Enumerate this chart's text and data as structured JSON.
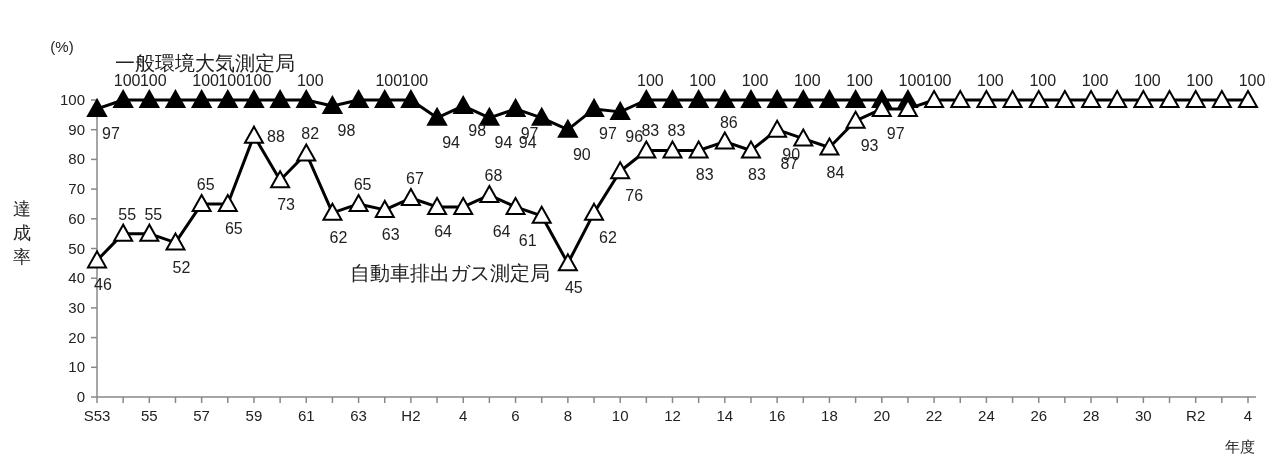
{
  "chart_data": {
    "type": "line",
    "categories": [
      "S53",
      null,
      "55",
      null,
      "57",
      null,
      "59",
      null,
      "61",
      null,
      "63",
      null,
      "H2",
      null,
      "4",
      null,
      "6",
      null,
      "8",
      null,
      "10",
      null,
      "12",
      null,
      "14",
      null,
      "16",
      null,
      "18",
      null,
      "20",
      null,
      "22",
      null,
      "24",
      null,
      "26",
      null,
      "28",
      null,
      "30",
      null,
      "R2",
      null,
      "4"
    ],
    "xlabel": "年度",
    "ylabel": "達成率",
    "annotations": [
      "(%)"
    ],
    "ylim": [
      0,
      100
    ],
    "yticks": [
      0,
      10,
      20,
      30,
      40,
      50,
      60,
      70,
      80,
      90,
      100
    ],
    "grid": false,
    "legend": false,
    "marker": "triangle",
    "line_style": "solid",
    "series": [
      {
        "name": "一般環境大気測定局",
        "color": "#000000",
        "values": [
          97,
          100,
          100,
          100,
          100,
          100,
          100,
          100,
          100,
          98,
          100,
          100,
          100,
          94,
          98,
          94,
          97,
          94,
          90,
          97,
          96,
          100,
          100,
          100,
          100,
          100,
          100,
          100,
          100,
          100,
          100,
          100,
          null,
          null,
          null,
          null,
          null,
          null,
          null,
          null,
          null,
          null,
          null,
          null,
          null
        ],
        "value_labels": [
          "97",
          "100",
          "100",
          null,
          "100",
          "100",
          "100",
          null,
          "100",
          "98",
          null,
          "100",
          "100",
          "94",
          "98",
          "94",
          "97",
          "94",
          "90",
          "97",
          "96",
          "100",
          null,
          "100",
          null,
          "100",
          null,
          "100",
          null,
          "100",
          null,
          "100",
          null,
          null,
          null,
          null,
          null,
          null,
          null,
          null,
          null,
          null,
          null,
          null,
          null
        ]
      },
      {
        "name": "自動車排出ガス測定局",
        "color": "#000000",
        "values": [
          46,
          55,
          55,
          52,
          65,
          65,
          88,
          73,
          82,
          62,
          65,
          63,
          67,
          64,
          64,
          68,
          64,
          61,
          45,
          62,
          76,
          83,
          83,
          83,
          86,
          83,
          90,
          87,
          84,
          93,
          97,
          97,
          100,
          100,
          100,
          100,
          100,
          100,
          100,
          100,
          100,
          100,
          100,
          100,
          100
        ],
        "value_labels": [
          "46",
          "55",
          "55",
          "52",
          "65",
          "65",
          "88",
          "73",
          "82",
          "62",
          "65",
          "63",
          "67",
          "64",
          null,
          "68",
          "64",
          "61",
          "45",
          "62",
          "76",
          "83",
          "83",
          "83",
          "86",
          "83",
          "90",
          "87",
          "84",
          "93",
          "97",
          null,
          "100",
          null,
          "100",
          null,
          "100",
          null,
          "100",
          null,
          "100",
          null,
          "100",
          null,
          "100"
        ]
      }
    ]
  }
}
